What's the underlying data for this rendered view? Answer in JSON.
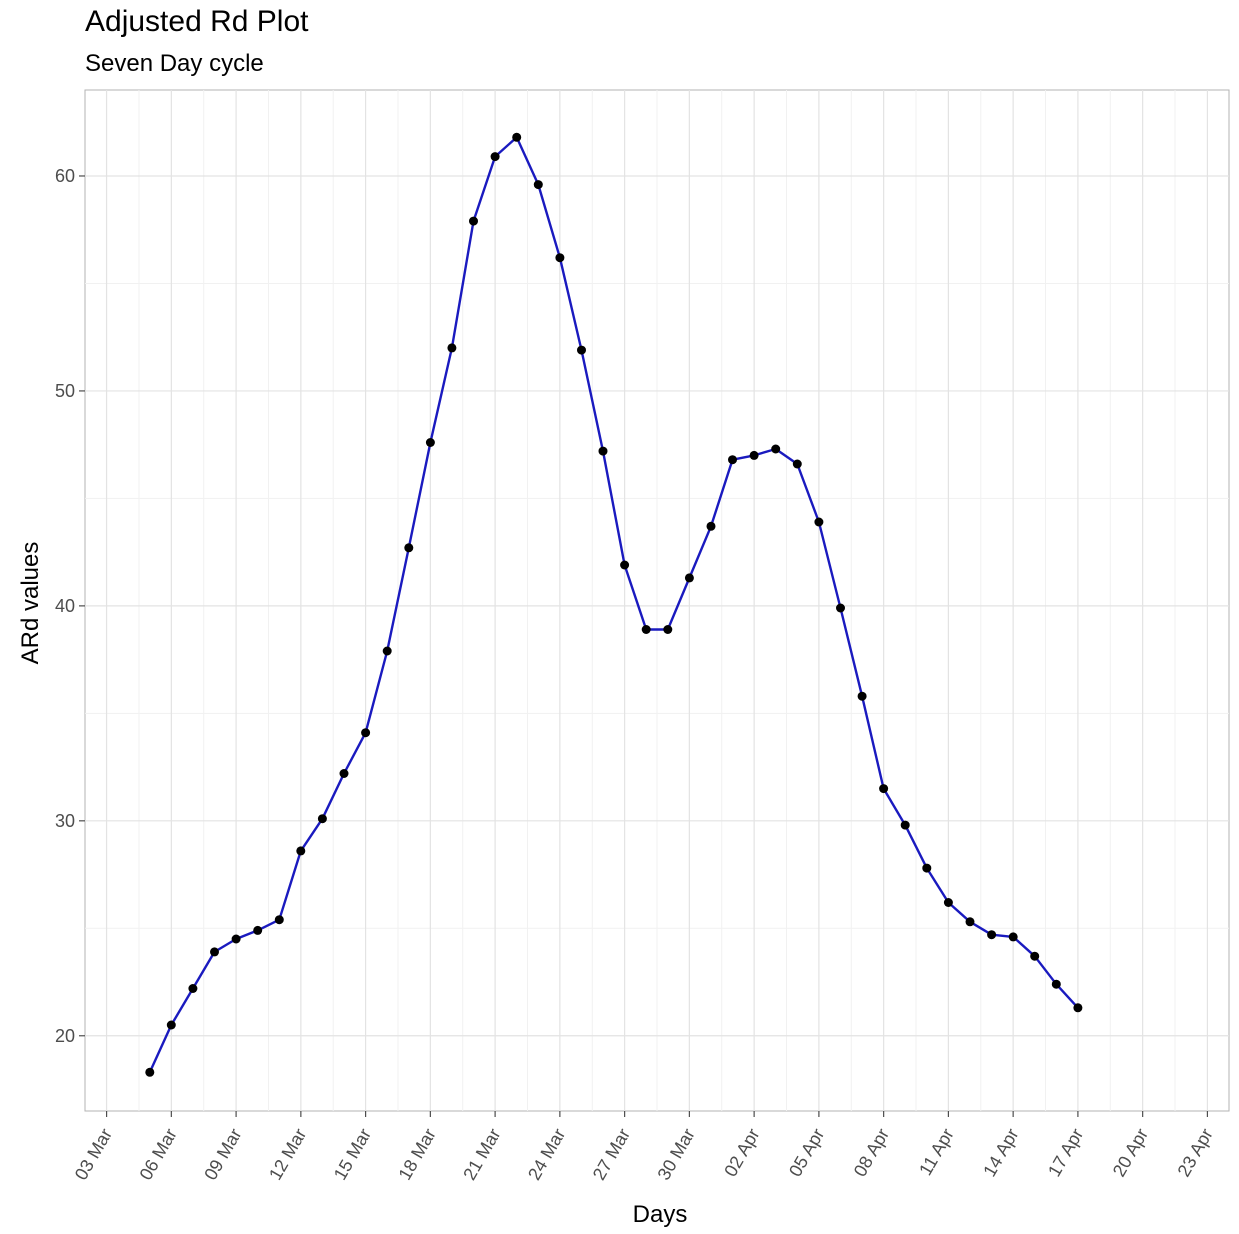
{
  "chart_data": {
    "type": "line",
    "title": "Adjusted Rd Plot",
    "subtitle": "Seven Day cycle",
    "xlabel": "Days",
    "ylabel": "ARd values",
    "grid": true,
    "legend": "none",
    "x_tick_labels": [
      "03 Mar",
      "06 Mar",
      "09 Mar",
      "12 Mar",
      "15 Mar",
      "18 Mar",
      "21 Mar",
      "24 Mar",
      "27 Mar",
      "30 Mar",
      "02 Apr",
      "05 Apr",
      "08 Apr",
      "11 Apr",
      "14 Apr",
      "17 Apr",
      "20 Apr",
      "23 Apr"
    ],
    "y_ticks": [
      20,
      30,
      40,
      50,
      60
    ],
    "ylim": [
      16.5,
      64
    ],
    "xlim": [
      "2020-03-02",
      "2020-04-24"
    ],
    "line_color": "#1a1abf",
    "point_color": "#000000",
    "x": [
      "2020-03-05",
      "2020-03-06",
      "2020-03-07",
      "2020-03-08",
      "2020-03-09",
      "2020-03-10",
      "2020-03-11",
      "2020-03-12",
      "2020-03-13",
      "2020-03-14",
      "2020-03-15",
      "2020-03-16",
      "2020-03-17",
      "2020-03-18",
      "2020-03-19",
      "2020-03-20",
      "2020-03-21",
      "2020-03-22",
      "2020-03-23",
      "2020-03-24",
      "2020-03-25",
      "2020-03-26",
      "2020-03-27",
      "2020-03-28",
      "2020-03-29",
      "2020-03-30",
      "2020-03-31",
      "2020-04-01",
      "2020-04-02",
      "2020-04-03",
      "2020-04-04",
      "2020-04-05",
      "2020-04-06",
      "2020-04-07",
      "2020-04-08",
      "2020-04-09",
      "2020-04-10",
      "2020-04-11",
      "2020-04-12",
      "2020-04-13",
      "2020-04-14",
      "2020-04-15",
      "2020-04-16",
      "2020-04-17"
    ],
    "values": [
      18.3,
      20.5,
      22.2,
      23.9,
      24.5,
      24.9,
      25.4,
      28.6,
      30.1,
      32.2,
      34.1,
      37.9,
      42.7,
      47.6,
      52.0,
      57.9,
      60.9,
      61.8,
      59.6,
      56.2,
      51.9,
      47.2,
      41.9,
      38.9,
      38.9,
      41.3,
      43.7,
      46.8,
      47.0,
      47.3,
      46.6,
      43.9,
      39.9,
      35.8,
      31.5,
      29.8,
      27.8,
      26.2,
      25.3,
      24.7,
      24.6,
      23.7,
      22.4,
      21.3
    ]
  }
}
